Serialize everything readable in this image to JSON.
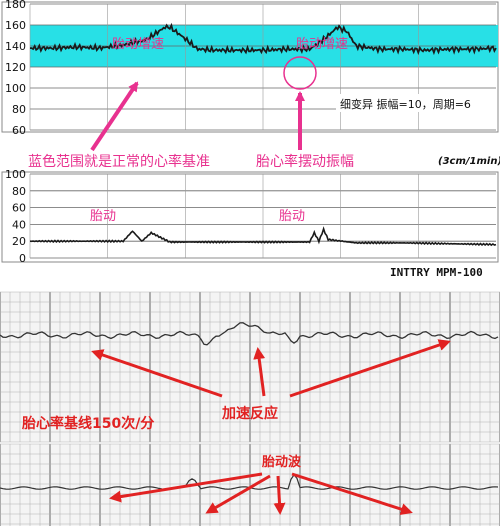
{
  "panel_top": {
    "y_ticks": [
      "180",
      "160",
      "140",
      "120",
      "100",
      "80",
      "60"
    ],
    "badge_text": "细变异  振幅=10，周期=6",
    "speed_label": "(3cm/1min)",
    "annotation_accel_1": "胎动增速",
    "annotation_accel_2": "胎动增速",
    "annotation_baseline_band": "蓝色范围就是正常的心率基准",
    "annotation_amplitude": "胎心率摆动振幅",
    "band_color": "#28e0e6",
    "annotation_color": "#e8318f"
  },
  "panel_toco": {
    "y_ticks": [
      "100",
      "80",
      "60",
      "40",
      "20",
      "0"
    ],
    "annotation_fetal_move_1": "胎动",
    "annotation_fetal_move_2": "胎动",
    "device_label": "INTTRY  MPM-100"
  },
  "panel_bottom_1": {
    "annotation_baseline": "胎心率基线150次/分",
    "annotation_accel": "加速反应",
    "arrow_color": "#e12222"
  },
  "panel_bottom_2": {
    "annotation_fetal_wave": "胎动波",
    "arrow_color": "#e12222"
  },
  "chart_data": [
    {
      "type": "line",
      "title": "",
      "ylim": [
        60,
        180
      ],
      "ylabel": "",
      "normal_band": [
        120,
        160
      ],
      "series": [
        {
          "x": [
            0,
            5,
            10,
            15,
            20,
            25,
            27,
            29,
            30,
            33,
            36,
            40,
            45,
            50,
            55,
            60,
            62,
            64,
            66,
            68,
            70,
            75,
            80,
            85,
            90,
            95,
            100
          ],
          "values": [
            138,
            138,
            139,
            138,
            141,
            146,
            152,
            158,
            158,
            148,
            137,
            136,
            136,
            136,
            137,
            137,
            143,
            150,
            158,
            154,
            140,
            137,
            137,
            136,
            137,
            137,
            138
          ]
        }
      ]
    },
    {
      "type": "line",
      "title": "",
      "ylim": [
        0,
        100
      ],
      "ylabel": "",
      "series": [
        {
          "x": [
            0,
            10,
            20,
            22,
            24,
            26,
            30,
            40,
            50,
            60,
            61,
            62,
            63,
            64,
            70,
            80,
            90,
            100
          ],
          "values": [
            20,
            20,
            20,
            32,
            20,
            30,
            19,
            19,
            19,
            19,
            30,
            20,
            34,
            22,
            18,
            18,
            17,
            16
          ]
        }
      ]
    }
  ]
}
